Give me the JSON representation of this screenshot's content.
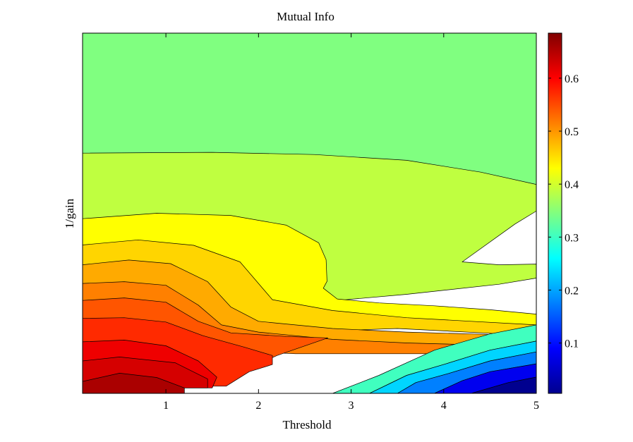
{
  "chart_data": {
    "type": "contour",
    "title": "Mutual Info",
    "xlabel": "Threshold",
    "ylabel": "1/gain",
    "xlim": [
      0.1,
      5
    ],
    "ylim": [
      0,
      1
    ],
    "xticks": [
      1,
      2,
      3,
      4,
      5
    ],
    "xtick_labels": [
      "1",
      "2",
      "3",
      "4",
      "5"
    ],
    "colorbar": {
      "colormap": "jet",
      "range": [
        0.005,
        0.685
      ],
      "ticks": [
        0.1,
        0.2,
        0.3,
        0.4,
        0.5,
        0.6
      ],
      "tick_labels": [
        "0.1",
        "0.2",
        "0.3",
        "0.4",
        "0.5",
        "0.6"
      ]
    },
    "contour_level_step": 0.025,
    "regions": [
      {
        "level": 0.35,
        "color": "#80ff80",
        "points": [
          [
            0.1,
            1
          ],
          [
            5,
            1
          ],
          [
            5,
            0.58
          ],
          [
            0.1,
            0.58
          ]
        ]
      },
      {
        "level": 0.375,
        "color": "#bfff40",
        "points": [
          [
            0.1,
            0.667
          ],
          [
            1.5,
            0.669
          ],
          [
            2.6,
            0.663
          ],
          [
            3.6,
            0.647
          ],
          [
            4.4,
            0.614
          ],
          [
            5,
            0.58
          ],
          [
            5,
            0.506
          ],
          [
            4.77,
            0.47
          ],
          [
            4.2,
            0.365
          ],
          [
            4.6,
            0.357
          ],
          [
            5,
            0.359
          ],
          [
            5,
            0.32
          ],
          [
            4.6,
            0.303
          ],
          [
            3.6,
            0.275
          ],
          [
            2.5,
            0.25
          ],
          [
            1.5,
            0.26
          ],
          [
            0.1,
            0.29
          ]
        ]
      },
      {
        "level": 0.425,
        "color": "#ffff00",
        "points": [
          [
            0.1,
            0.485
          ],
          [
            0.9,
            0.5
          ],
          [
            1.7,
            0.494
          ],
          [
            2.3,
            0.467
          ],
          [
            2.65,
            0.418
          ],
          [
            2.73,
            0.371
          ],
          [
            2.74,
            0.311
          ],
          [
            2.7,
            0.292
          ],
          [
            2.85,
            0.262
          ],
          [
            3.3,
            0.251
          ],
          [
            3.9,
            0.243
          ],
          [
            4.5,
            0.232
          ],
          [
            5,
            0.22
          ],
          [
            5,
            0.18
          ],
          [
            3.5,
            0.21
          ],
          [
            2.4,
            0.21
          ],
          [
            1.5,
            0.22
          ],
          [
            0.1,
            0.24
          ]
        ]
      },
      {
        "level": 0.45,
        "color": "#ffd500",
        "points": [
          [
            0.1,
            0.412
          ],
          [
            0.7,
            0.426
          ],
          [
            1.3,
            0.411
          ],
          [
            1.8,
            0.365
          ],
          [
            2.0,
            0.305
          ],
          [
            2.15,
            0.26
          ],
          [
            2.8,
            0.23
          ],
          [
            3.6,
            0.21
          ],
          [
            4.3,
            0.2
          ],
          [
            5,
            0.19
          ],
          [
            5,
            0.16
          ],
          [
            3.5,
            0.18
          ],
          [
            2.4,
            0.17
          ],
          [
            1.5,
            0.18
          ],
          [
            0.1,
            0.2
          ]
        ]
      },
      {
        "level": 0.475,
        "color": "#ffaa00",
        "points": [
          [
            0.1,
            0.357
          ],
          [
            0.6,
            0.37
          ],
          [
            1.05,
            0.36
          ],
          [
            1.45,
            0.31
          ],
          [
            1.7,
            0.24
          ],
          [
            2.0,
            0.2
          ],
          [
            2.8,
            0.18
          ],
          [
            3.6,
            0.17
          ],
          [
            4.3,
            0.165
          ],
          [
            5,
            0.16
          ],
          [
            5,
            0.13
          ],
          [
            3.5,
            0.14
          ],
          [
            2.4,
            0.14
          ],
          [
            1.5,
            0.15
          ],
          [
            0.1,
            0.16
          ]
        ]
      },
      {
        "level": 0.5,
        "color": "#ff8000",
        "points": [
          [
            0.1,
            0.305
          ],
          [
            0.55,
            0.31
          ],
          [
            1.0,
            0.3
          ],
          [
            1.35,
            0.245
          ],
          [
            1.6,
            0.19
          ],
          [
            2.0,
            0.17
          ],
          [
            2.8,
            0.15
          ],
          [
            3.6,
            0.14
          ],
          [
            4.3,
            0.135
          ],
          [
            5,
            0.13
          ],
          [
            5,
            0.11
          ],
          [
            3.5,
            0.11
          ],
          [
            2.4,
            0.11
          ],
          [
            1.5,
            0.12
          ],
          [
            0.1,
            0.13
          ]
        ]
      },
      {
        "level": 0.525,
        "color": "#ff5500",
        "points": [
          [
            0.1,
            0.258
          ],
          [
            0.55,
            0.265
          ],
          [
            1.0,
            0.253
          ],
          [
            1.35,
            0.2
          ],
          [
            1.7,
            0.168
          ],
          [
            2.3,
            0.158
          ],
          [
            2.75,
            0.154
          ],
          [
            2.2,
            0.105
          ],
          [
            1.9,
            0.07
          ],
          [
            1.7,
            0.04
          ],
          [
            1.5,
            0.02
          ],
          [
            0.1,
            0.02
          ]
        ]
      },
      {
        "level": 0.55,
        "color": "#ff2a00",
        "points": [
          [
            0.1,
            0.208
          ],
          [
            0.55,
            0.21
          ],
          [
            1.0,
            0.198
          ],
          [
            1.4,
            0.16
          ],
          [
            1.85,
            0.128
          ],
          [
            2.15,
            0.105
          ],
          [
            2.15,
            0.08
          ],
          [
            1.9,
            0.06
          ],
          [
            1.65,
            0.02
          ],
          [
            0.1,
            0.02
          ]
        ]
      },
      {
        "level": 0.6,
        "color": "#ef0000",
        "points": [
          [
            0.1,
            0.143
          ],
          [
            0.55,
            0.148
          ],
          [
            1.0,
            0.132
          ],
          [
            1.35,
            0.09
          ],
          [
            1.55,
            0.045
          ],
          [
            1.5,
            0.015
          ],
          [
            0.1,
            0.015
          ]
        ]
      },
      {
        "level": 0.625,
        "color": "#d50000",
        "points": [
          [
            0.1,
            0.09
          ],
          [
            0.5,
            0.101
          ],
          [
            1.1,
            0.085
          ],
          [
            1.45,
            0.04
          ],
          [
            1.45,
            0.015
          ],
          [
            0.1,
            0.015
          ]
        ]
      },
      {
        "level": 0.65,
        "color": "#aa0000",
        "points": [
          [
            0.1,
            0.033
          ],
          [
            0.5,
            0.056
          ],
          [
            0.9,
            0.044
          ],
          [
            1.2,
            0.015
          ],
          [
            1.2,
            0.0
          ],
          [
            0.1,
            0.0
          ]
        ]
      },
      {
        "level": 0.3,
        "color": "#40ffbf",
        "points": [
          [
            2.8,
            0
          ],
          [
            3.3,
            0.05
          ],
          [
            3.9,
            0.12
          ],
          [
            4.5,
            0.165
          ],
          [
            5,
            0.19
          ],
          [
            5,
            0.145
          ],
          [
            4.5,
            0.12
          ],
          [
            4,
            0.08
          ],
          [
            3.6,
            0.05
          ],
          [
            3.2,
            0
          ]
        ]
      },
      {
        "level": 0.225,
        "color": "#00d5ff",
        "points": [
          [
            3.2,
            0
          ],
          [
            3.6,
            0.05
          ],
          [
            4,
            0.08
          ],
          [
            4.5,
            0.12
          ],
          [
            5,
            0.145
          ],
          [
            5,
            0.115
          ],
          [
            4.5,
            0.09
          ],
          [
            4.05,
            0.055
          ],
          [
            3.7,
            0.03
          ],
          [
            3.5,
            0
          ]
        ]
      },
      {
        "level": 0.15,
        "color": "#0080ff",
        "points": [
          [
            3.5,
            0
          ],
          [
            3.7,
            0.03
          ],
          [
            4.05,
            0.055
          ],
          [
            4.5,
            0.09
          ],
          [
            5,
            0.115
          ],
          [
            5,
            0.082
          ],
          [
            4.5,
            0.06
          ],
          [
            4.2,
            0.035
          ],
          [
            3.9,
            0
          ]
        ]
      },
      {
        "level": 0.075,
        "color": "#0000ef",
        "points": [
          [
            3.9,
            0
          ],
          [
            4.2,
            0.035
          ],
          [
            4.5,
            0.06
          ],
          [
            5,
            0.082
          ],
          [
            5,
            0.045
          ],
          [
            4.7,
            0.03
          ],
          [
            4.3,
            0
          ]
        ]
      },
      {
        "level": 0.025,
        "color": "#00008f",
        "points": [
          [
            4.3,
            0
          ],
          [
            4.7,
            0.03
          ],
          [
            5,
            0.045
          ],
          [
            5,
            0
          ]
        ]
      }
    ]
  }
}
